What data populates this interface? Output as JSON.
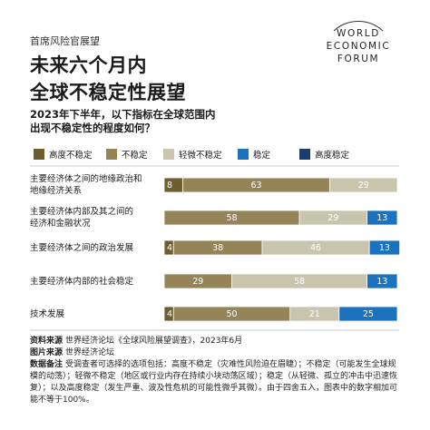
{
  "header": {
    "kicker": "首席风险官展望",
    "title_lines": [
      "未来六个月内",
      "全球不稳定性展望"
    ],
    "question_lines": [
      "2023年下半年，以下指标在全球范围内",
      "出现不稳定性的程度如何？"
    ]
  },
  "logo": [
    "WORLD",
    "ECONOMIC",
    "FORUM"
  ],
  "chart_data": {
    "type": "stacked-bar-horizontal",
    "categories": [
      "主要经济体之间的地缘政治和\n地缘经济关系",
      "主要经济体内部及其之间的\n经济和金融状况",
      "主要经济体之间的政治发展",
      "主要经济体内部的社会稳定",
      "技术发展"
    ],
    "series": [
      {
        "name": "高度不稳定",
        "color": "#6e5d2f",
        "values": [
          8,
          null,
          4,
          null,
          4
        ]
      },
      {
        "name": "不稳定",
        "color": "#948457",
        "values": [
          63,
          58,
          38,
          29,
          50
        ]
      },
      {
        "name": "轻微不稳定",
        "color": "#c9c4ae",
        "values": [
          29,
          29,
          46,
          58,
          21
        ]
      },
      {
        "name": "稳定",
        "color": "#1b72bf",
        "values": [
          null,
          13,
          13,
          13,
          25
        ]
      },
      {
        "name": "高度稳定",
        "color": "#1d3c6e",
        "values": [
          null,
          null,
          null,
          null,
          null
        ]
      }
    ],
    "xlim": [
      0,
      100
    ]
  },
  "footer": [
    {
      "label": "资料来源",
      "text": "世界经济论坛《全球风险展望调查》，2023年6月"
    },
    {
      "label": "图片来源",
      "text": "世界经济论坛"
    },
    {
      "label": "数据备注",
      "text": "受调查者可选择的选项包括：高度不稳定（灾难性风险迫在眉睫）；不稳定（可能发生全球规模的动荡）；轻微不稳定（地区或行业内存在持续小块动荡区域）；稳定（从轻微、孤立的冲击中迅速恢复）；以及高度稳定（发生严重、波及性危机的可能性微乎其微）。由于四舍五入，图表中的数字相加可能不等于100%。"
    }
  ]
}
